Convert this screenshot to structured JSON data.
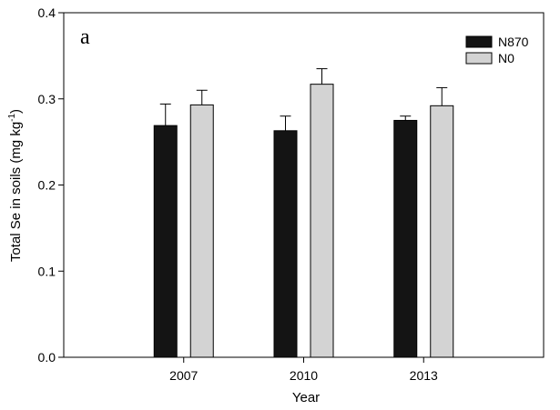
{
  "chart_data": {
    "type": "bar",
    "panel_label": "a",
    "categories": [
      "2007",
      "2010",
      "2013"
    ],
    "series": [
      {
        "name": "N870",
        "color": "#141414",
        "values": [
          0.269,
          0.263,
          0.275
        ],
        "errors": [
          0.025,
          0.017,
          0.005
        ]
      },
      {
        "name": "N0",
        "color": "#d3d3d3",
        "values": [
          0.293,
          0.317,
          0.292
        ],
        "errors": [
          0.017,
          0.018,
          0.021
        ]
      }
    ],
    "xlabel": "Year",
    "ylabel": "Total Se in soils  (mg kg",
    "ylabel_sup": "-1",
    "ylabel_end": ")",
    "ylim": [
      0.0,
      0.4
    ],
    "yticks": [
      "0.0",
      "0.1",
      "0.2",
      "0.3",
      "0.4"
    ],
    "grid": false,
    "legend_position": "top-right"
  }
}
